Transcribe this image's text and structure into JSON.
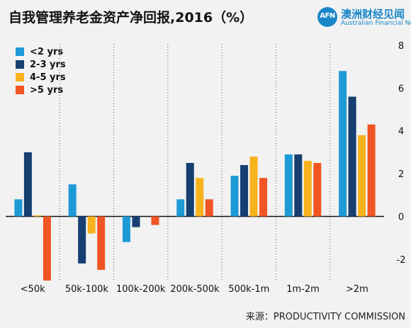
{
  "title": "自我管理养老金资产净回报,2016（%）",
  "logo": {
    "mark": "AFN",
    "name_cn": "澳洲财经见闻",
    "name_en": "Australian Financial News"
  },
  "source": "来源：PRODUCTIVITY COMMISSION",
  "chart_data": {
    "type": "bar",
    "title": "自我管理养老金资产净回报,2016（%）",
    "categories": [
      "<50k",
      "50k-100k",
      "100k-200k",
      "200k-500k",
      "500k-1m",
      "1m-2m",
      ">2m"
    ],
    "series": [
      {
        "name": "<2 yrs",
        "color": "#1e9ad6",
        "values": [
          0.8,
          1.5,
          -1.2,
          0.8,
          1.9,
          2.9,
          6.8
        ]
      },
      {
        "name": "2-3 yrs",
        "color": "#163f72",
        "values": [
          3.0,
          -2.2,
          -0.5,
          2.5,
          2.4,
          2.9,
          5.6
        ]
      },
      {
        "name": "4-5 yrs",
        "color": "#f7b21e",
        "values": [
          0.05,
          -0.8,
          0,
          1.8,
          2.8,
          2.6,
          3.8
        ]
      },
      {
        "name": ">5 yrs",
        "color": "#f05523",
        "values": [
          -3.0,
          -2.5,
          -0.4,
          0.8,
          1.8,
          2.5,
          4.3
        ]
      }
    ],
    "ylim": [
      -2.8,
      8
    ],
    "yticks": [
      "8",
      "6",
      "4",
      "2",
      "0",
      "-2"
    ],
    "ytick_values": [
      8,
      6,
      4,
      2,
      0,
      -2
    ],
    "grid": "vertical dotted separators between categories",
    "legend": "top-left"
  }
}
